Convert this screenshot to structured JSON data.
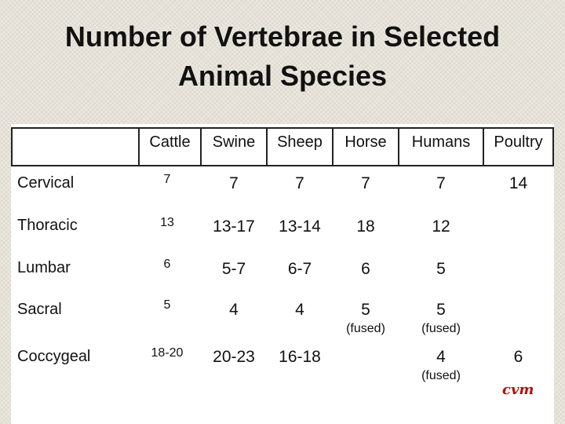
{
  "title_line1": "Number of Vertebrae in Selected",
  "title_line2": "Animal Species",
  "columns": [
    "Cattle",
    "Swine",
    "Sheep",
    "Horse",
    "Humans",
    "Poultry"
  ],
  "rows": [
    {
      "label": "Cervical",
      "cattle": "7",
      "swine": "7",
      "sheep": "7",
      "horse": "7",
      "humans": "7",
      "poultry": "14"
    },
    {
      "label": "Thoracic",
      "cattle": "13",
      "swine": "13-17",
      "sheep": "13-14",
      "horse": "18",
      "humans": "12",
      "poultry": ""
    },
    {
      "label": "Lumbar",
      "cattle": "6",
      "swine": "5-7",
      "sheep": "6-7",
      "horse": "6",
      "humans": "5",
      "poultry": ""
    },
    {
      "label": "Sacral",
      "cattle": "5",
      "swine": "4",
      "sheep": "4",
      "horse": "5",
      "horse_note": "(fused)",
      "humans": "5",
      "humans_note": "(fused)",
      "poultry": ""
    },
    {
      "label": "Coccygeal",
      "cattle": "18-20",
      "swine": "20-23",
      "sheep": "16-18",
      "horse": "",
      "humans": "4",
      "humans_note": "(fused)",
      "poultry": "6"
    }
  ],
  "watermark": "cvm"
}
